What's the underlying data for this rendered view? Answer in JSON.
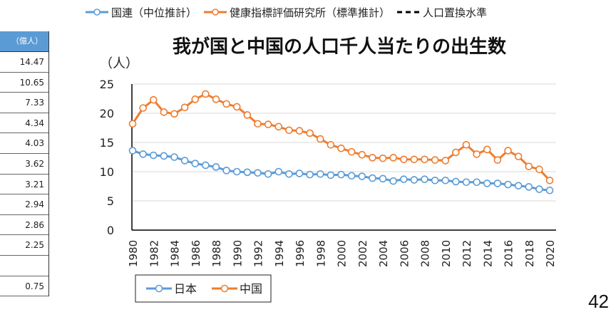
{
  "top_legend": [
    {
      "label": "国連（中位推計）",
      "color": "#5b9bd5",
      "style": "line-marker"
    },
    {
      "label": "健康指標評価研究所（標準推計）",
      "color": "#ed7d31",
      "style": "line-marker"
    },
    {
      "label": "人口置換水準",
      "color": "#000000",
      "style": "dashed"
    }
  ],
  "side_table": {
    "header": "（億人）",
    "values": [
      "14.47",
      "10.65",
      "7.33",
      "4.34",
      "4.03",
      "3.62",
      "3.21",
      "2.94",
      "2.86",
      "2.25",
      "",
      "0.75"
    ]
  },
  "page_number": "42",
  "chart_data": {
    "type": "line",
    "title": "我が国と中国の人口千人当たりの出生数",
    "ylabel": "（人）",
    "xlabel": "",
    "ylim": [
      0,
      25
    ],
    "yticks": [
      0,
      5,
      10,
      15,
      20,
      25
    ],
    "grid": true,
    "legend_position": "bottom-left",
    "x": [
      1980,
      1981,
      1982,
      1983,
      1984,
      1985,
      1986,
      1987,
      1988,
      1989,
      1990,
      1991,
      1992,
      1993,
      1994,
      1995,
      1996,
      1997,
      1998,
      1999,
      2000,
      2001,
      2002,
      2003,
      2004,
      2005,
      2006,
      2007,
      2008,
      2009,
      2010,
      2011,
      2012,
      2013,
      2014,
      2015,
      2016,
      2017,
      2018,
      2019,
      2020
    ],
    "xticks": [
      "1980",
      "1982",
      "1984",
      "1986",
      "1988",
      "1990",
      "1992",
      "1994",
      "1996",
      "1998",
      "2000",
      "2002",
      "2004",
      "2006",
      "2008",
      "2010",
      "2012",
      "2014",
      "2016",
      "2018",
      "2020"
    ],
    "series": [
      {
        "name": "日本",
        "color": "#5b9bd5",
        "values": [
          13.6,
          13.0,
          12.8,
          12.7,
          12.5,
          11.9,
          11.4,
          11.1,
          10.8,
          10.2,
          10.0,
          9.9,
          9.8,
          9.6,
          10.0,
          9.6,
          9.7,
          9.5,
          9.6,
          9.4,
          9.5,
          9.3,
          9.2,
          8.9,
          8.8,
          8.4,
          8.7,
          8.6,
          8.7,
          8.5,
          8.5,
          8.3,
          8.2,
          8.2,
          8.0,
          8.0,
          7.8,
          7.6,
          7.4,
          7.0,
          6.8
        ]
      },
      {
        "name": "中国",
        "color": "#ed7d31",
        "values": [
          18.2,
          20.9,
          22.3,
          20.2,
          19.9,
          21.0,
          22.4,
          23.3,
          22.4,
          21.6,
          21.1,
          19.7,
          18.2,
          18.1,
          17.7,
          17.1,
          17.0,
          16.6,
          15.6,
          14.6,
          14.0,
          13.4,
          12.9,
          12.4,
          12.3,
          12.4,
          12.1,
          12.1,
          12.1,
          12.0,
          11.9,
          13.3,
          14.6,
          13.0,
          13.8,
          12.0,
          13.6,
          12.6,
          10.9,
          10.4,
          8.5
        ]
      }
    ]
  }
}
